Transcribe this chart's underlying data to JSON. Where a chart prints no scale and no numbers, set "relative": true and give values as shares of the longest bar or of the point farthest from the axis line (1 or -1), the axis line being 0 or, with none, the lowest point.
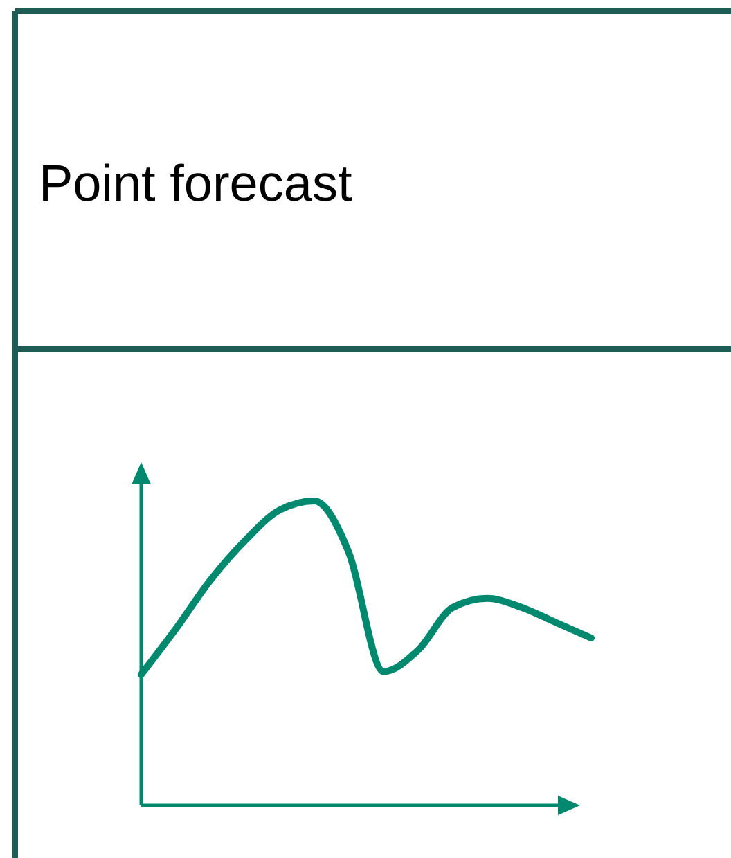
{
  "chart_data": {
    "type": "line",
    "title": "Point forecast",
    "relative": true,
    "categories": [
      null,
      null,
      null,
      null,
      null,
      null,
      null,
      null,
      null,
      null,
      null,
      null,
      null,
      null
    ],
    "series": [
      {
        "color": "#00896e",
        "values": [
          0.43,
          0.58,
          0.74,
          0.87,
          0.97,
          1,
          0.83,
          0.44,
          0.51,
          0.65,
          0.68,
          0.65,
          0.6,
          0.55
        ]
      }
    ],
    "marker": "none",
    "line_style": "solid"
  }
}
